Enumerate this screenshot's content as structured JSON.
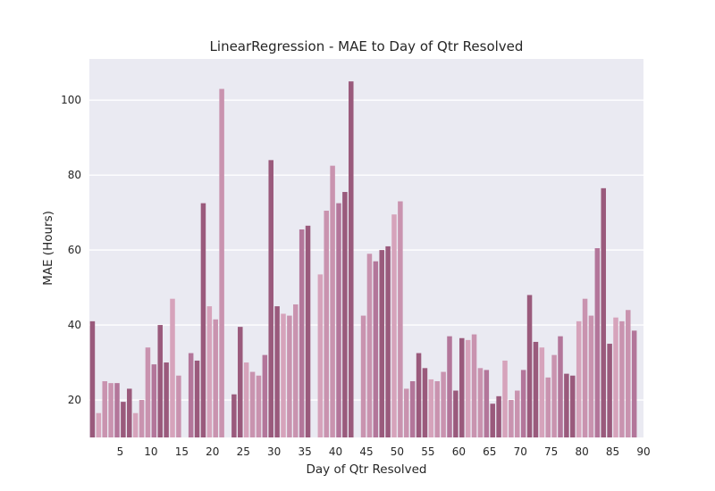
{
  "chart_data": {
    "type": "bar",
    "title": "LinearRegression - MAE to Day of Qtr Resolved",
    "xlabel": "Day of Qtr Resolved",
    "ylabel": "MAE (Hours)",
    "ylim": [
      10,
      111
    ],
    "xlim": [
      0,
      90
    ],
    "xticks": [
      5,
      10,
      15,
      20,
      25,
      30,
      35,
      40,
      45,
      50,
      55,
      60,
      65,
      70,
      75,
      80,
      85,
      90
    ],
    "yticks": [
      20,
      40,
      60,
      80,
      100
    ],
    "grid": true,
    "x": [
      0,
      1,
      2,
      3,
      4,
      5,
      6,
      7,
      8,
      9,
      10,
      11,
      12,
      13,
      14,
      15,
      16,
      17,
      18,
      19,
      20,
      21,
      22,
      23,
      24,
      25,
      26,
      27,
      28,
      29,
      30,
      31,
      32,
      33,
      34,
      35,
      36,
      37,
      38,
      39,
      40,
      41,
      42,
      43,
      44,
      45,
      46,
      47,
      48,
      49,
      50,
      51,
      52,
      53,
      54,
      55,
      56,
      57,
      58,
      59,
      60,
      61,
      62,
      63,
      64,
      65,
      66,
      67,
      68,
      69,
      70,
      71,
      72,
      73,
      74,
      75,
      76,
      77,
      78,
      79,
      80,
      81,
      82,
      83,
      84,
      85,
      86,
      87,
      88
    ],
    "values": [
      41,
      16.5,
      25,
      24.5,
      24.5,
      19.5,
      23,
      16.5,
      20,
      34,
      29.5,
      40,
      30,
      47,
      26.5,
      null,
      32.5,
      30.5,
      72.5,
      45,
      41.5,
      103,
      null,
      21.5,
      39.5,
      30,
      27.5,
      26.5,
      32,
      84,
      45,
      43,
      42.5,
      45.5,
      65.5,
      66.5,
      null,
      53.5,
      70.5,
      82.5,
      72.5,
      75.5,
      105,
      null,
      42.5,
      59,
      57,
      60,
      61,
      69.5,
      73,
      23,
      25,
      32.5,
      28.5,
      25.5,
      25,
      27.5,
      37,
      22.5,
      36.5,
      36,
      37.5,
      28.5,
      28,
      19,
      21,
      30.5,
      20,
      22.5,
      28,
      48,
      35.5,
      34,
      26,
      32,
      37,
      27,
      26.5,
      41,
      47,
      42.5,
      60.5,
      76.5,
      35,
      42,
      41,
      44,
      38.5
    ],
    "bar_colors": [
      "#9a5a7c",
      "#b3769a",
      "#c993af",
      "#d6a3bb"
    ]
  }
}
